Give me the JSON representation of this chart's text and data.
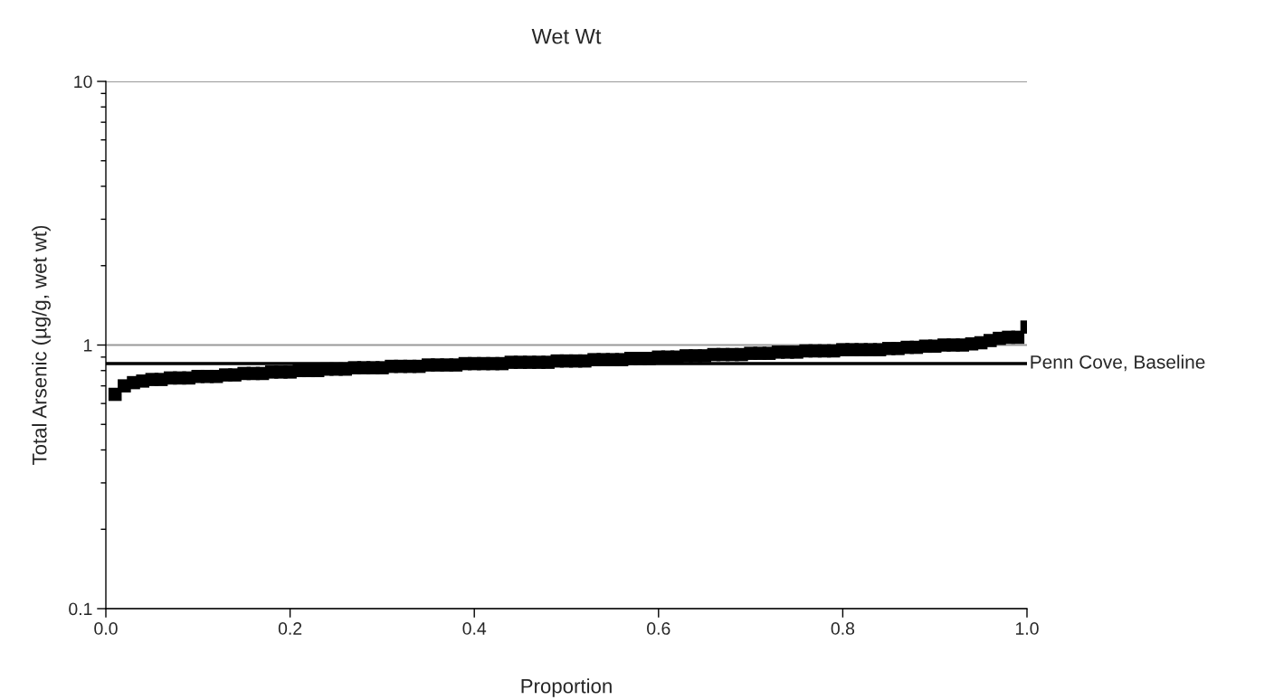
{
  "chart_data": {
    "type": "scatter",
    "title": "Wet Wt",
    "xlabel": "Proportion",
    "ylabel": "Total Arsenic (µg/g, wet wt)",
    "x": [
      0.01,
      0.02,
      0.03,
      0.04,
      0.05,
      0.06,
      0.07,
      0.08,
      0.09,
      0.1,
      0.11,
      0.12,
      0.13,
      0.14,
      0.15,
      0.16,
      0.17,
      0.18,
      0.19,
      0.2,
      0.21,
      0.22,
      0.23,
      0.24,
      0.25,
      0.26,
      0.27,
      0.28,
      0.29,
      0.3,
      0.31,
      0.32,
      0.33,
      0.34,
      0.35,
      0.36,
      0.37,
      0.38,
      0.39,
      0.4,
      0.41,
      0.42,
      0.43,
      0.44,
      0.45,
      0.46,
      0.47,
      0.48,
      0.49,
      0.5,
      0.51,
      0.52,
      0.53,
      0.54,
      0.55,
      0.56,
      0.57,
      0.58,
      0.59,
      0.6,
      0.61,
      0.62,
      0.63,
      0.64,
      0.65,
      0.66,
      0.67,
      0.68,
      0.69,
      0.7,
      0.71,
      0.72,
      0.73,
      0.74,
      0.75,
      0.76,
      0.77,
      0.78,
      0.79,
      0.8,
      0.81,
      0.82,
      0.83,
      0.84,
      0.85,
      0.86,
      0.87,
      0.88,
      0.89,
      0.9,
      0.91,
      0.92,
      0.93,
      0.94,
      0.95,
      0.96,
      0.97,
      0.98,
      0.99,
      1.0
    ],
    "series": [
      {
        "color": "#000000",
        "values": [
          0.65,
          0.7,
          0.72,
          0.73,
          0.74,
          0.74,
          0.75,
          0.75,
          0.75,
          0.76,
          0.76,
          0.76,
          0.77,
          0.77,
          0.78,
          0.78,
          0.78,
          0.79,
          0.79,
          0.79,
          0.8,
          0.8,
          0.8,
          0.81,
          0.81,
          0.81,
          0.82,
          0.82,
          0.82,
          0.82,
          0.83,
          0.83,
          0.83,
          0.83,
          0.84,
          0.84,
          0.84,
          0.84,
          0.85,
          0.85,
          0.85,
          0.85,
          0.85,
          0.86,
          0.86,
          0.86,
          0.86,
          0.86,
          0.87,
          0.87,
          0.87,
          0.87,
          0.88,
          0.88,
          0.88,
          0.88,
          0.89,
          0.89,
          0.89,
          0.9,
          0.9,
          0.9,
          0.91,
          0.91,
          0.91,
          0.92,
          0.92,
          0.92,
          0.92,
          0.93,
          0.93,
          0.93,
          0.94,
          0.94,
          0.94,
          0.95,
          0.95,
          0.95,
          0.95,
          0.96,
          0.96,
          0.96,
          0.96,
          0.96,
          0.97,
          0.97,
          0.98,
          0.98,
          0.99,
          0.99,
          1.0,
          1.0,
          1.0,
          1.01,
          1.02,
          1.04,
          1.06,
          1.07,
          1.07,
          1.17
        ]
      }
    ],
    "marker": "square",
    "log": "y",
    "xlim": [
      0,
      1
    ],
    "xticks": [
      {
        "value": 0,
        "label": "0.0"
      },
      0.2,
      0.4,
      0.6,
      0.8,
      {
        "value": 1,
        "label": "1.0"
      }
    ],
    "ylim": [
      0.1,
      10
    ],
    "yticks": [
      0.1,
      1,
      10
    ],
    "grid": "y",
    "legend": false,
    "ref_lines": [
      {
        "axis": "y",
        "value": 0.85,
        "label": "Penn Cove, Baseline",
        "color": "#000000",
        "line_style": "solid"
      }
    ]
  }
}
